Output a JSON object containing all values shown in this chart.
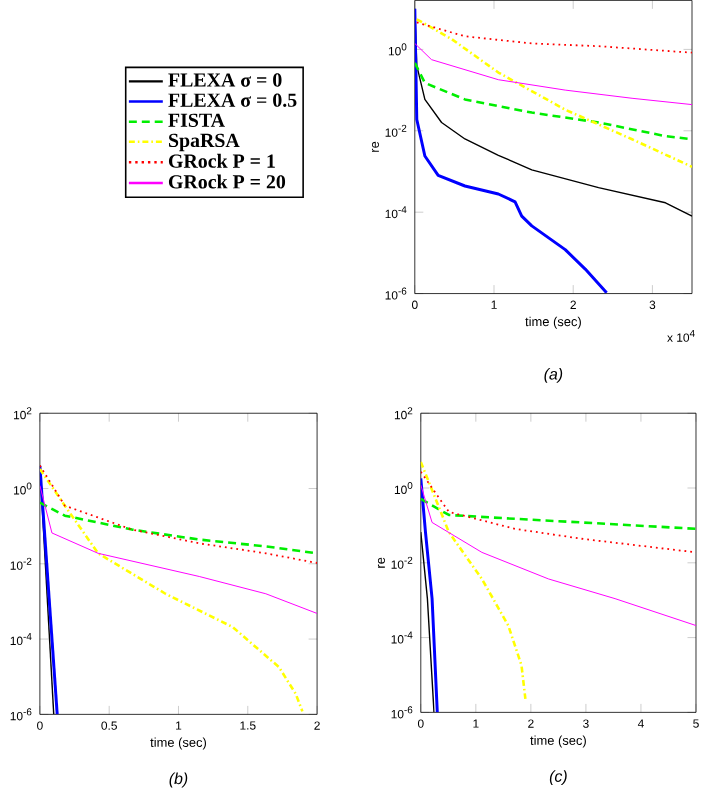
{
  "chart_data": [
    {
      "type": "line",
      "log": "y",
      "xlabel": "time (sec)",
      "ylabel": "re",
      "legend": "left",
      "xlim": [
        0,
        3.5
      ],
      "xticks": [
        0,
        1,
        2,
        3
      ],
      "ylim": [
        1e-06,
        16
      ],
      "yticks": [
        {
          "value": 1e-06,
          "label": "10$^{-6}$"
        },
        {
          "value": 0.0001,
          "label": "10$^{-4}$"
        },
        {
          "value": 0.01,
          "label": "10$^{-2}$"
        },
        {
          "value": 1,
          "label": "10$^{0}$"
        }
      ],
      "annotations": [
        "x 10$^{4}$",
        "(a)"
      ],
      "series": [
        {
          "name": "FLEXA σ = 0",
          "color": "#000000",
          "line_style": "solid",
          "x": [
            0,
            0.025,
            0.127,
            0.338,
            0.633,
            1.055,
            1.477,
            2.32,
            3.165,
            3.5
          ],
          "values": [
            10,
            0.4,
            0.059,
            0.016,
            0.0063,
            0.0025,
            0.0011,
            0.0004,
            0.00017,
            8e-05
          ]
        },
        {
          "name": "FLEXA σ = 0.5",
          "color": "#0000ff",
          "line_style": "solid",
          "x": [
            0,
            0.025,
            0.127,
            0.295,
            0.633,
            1.055,
            1.266,
            1.35,
            1.477,
            1.899,
            2.152,
            2.422
          ],
          "values": [
            10,
            0.019,
            0.0024,
            0.0008,
            0.00044,
            0.00028,
            0.00018,
            8e-05,
            4.6e-05,
            1.2e-05,
            4e-06,
            1.05e-06
          ]
        },
        {
          "name": "FISTA",
          "color": "#00ee00",
          "line_style": "dashed",
          "x": [
            0,
            0.127,
            0.633,
            1.477,
            2.32,
            3.165,
            3.5
          ],
          "values": [
            0.47,
            0.15,
            0.059,
            0.028,
            0.016,
            0.0074,
            0.0062
          ]
        },
        {
          "name": "SpaRSA",
          "color": "#ffff00",
          "line_style": "dashdot",
          "x": [
            0.025,
            0.464,
            1.055,
            1.899,
            2.743,
            3.5
          ],
          "values": [
            5.5,
            1.8,
            0.27,
            0.033,
            0.0062,
            0.0013
          ]
        },
        {
          "name": "GRock P = 1",
          "color": "#ff0000",
          "line_style": "dotted",
          "x": [
            0.025,
            0.633,
            1.477,
            2.32,
            3.5
          ],
          "values": [
            4.6,
            2.1,
            1.4,
            1.2,
            0.83
          ]
        },
        {
          "name": "GRock P = 20",
          "color": "#ff00ff",
          "line_style": "solid",
          "x": [
            0,
            0.211,
            1.055,
            1.899,
            2.743,
            3.5
          ],
          "values": [
            1.4,
            0.56,
            0.18,
            0.1,
            0.063,
            0.044
          ]
        }
      ]
    },
    {
      "type": "line",
      "log": "y",
      "xlabel": "time (sec)",
      "xlim": [
        0,
        2
      ],
      "xticks": [
        0,
        0.5,
        1,
        1.5,
        2
      ],
      "ylim": [
        1e-06,
        100
      ],
      "yticks": [
        {
          "value": 1e-06,
          "label": "10$^{-6}$"
        },
        {
          "value": 0.0001,
          "label": "10$^{-4}$"
        },
        {
          "value": 0.01,
          "label": "10$^{-2}$"
        },
        {
          "value": 1,
          "label": "10$^{0}$"
        },
        {
          "value": 100,
          "label": "10$^{2}$"
        }
      ],
      "annotations": [
        "(b)"
      ],
      "series": [
        {
          "color": "#000000",
          "line_style": "solid",
          "x": [
            0,
            0.1
          ],
          "values": [
            4,
            1e-06
          ]
        },
        {
          "color": "#0000ff",
          "line_style": "solid",
          "x": [
            0,
            0.125
          ],
          "values": [
            4,
            1e-06
          ]
        },
        {
          "color": "#00ee00",
          "line_style": "dashed",
          "x": [
            0,
            0.18,
            0.665,
            1.15,
            1.63,
            2
          ],
          "values": [
            0.42,
            0.19,
            0.081,
            0.044,
            0.029,
            0.019
          ]
        },
        {
          "color": "#ffff00",
          "line_style": "dashdot",
          "x": [
            0,
            0.18,
            0.42,
            0.906,
            1.39,
            1.725,
            1.846,
            1.894
          ],
          "values": [
            3.3,
            0.35,
            0.019,
            0.0016,
            0.00021,
            1.8e-05,
            3.5e-06,
            1.2e-06
          ]
        },
        {
          "color": "#ff0000",
          "line_style": "dotted",
          "x": [
            0,
            0.18,
            0.665,
            1.15,
            1.63,
            2
          ],
          "values": [
            4.1,
            0.35,
            0.081,
            0.035,
            0.019,
            0.0105
          ]
        },
        {
          "color": "#ff00ff",
          "line_style": "solid",
          "x": [
            0,
            0.087,
            0.42,
            1.15,
            1.63,
            2
          ],
          "values": [
            1.2,
            0.066,
            0.019,
            0.0046,
            0.0016,
            0.00048
          ]
        }
      ]
    },
    {
      "type": "line",
      "log": "y",
      "xlabel": "time (sec)",
      "ylabel": "re",
      "xlim": [
        0,
        5
      ],
      "xticks": [
        0,
        1,
        2,
        3,
        4,
        5
      ],
      "ylim": [
        1e-06,
        100
      ],
      "yticks": [
        {
          "value": 1e-06,
          "label": "10$^{-6}$"
        },
        {
          "value": 0.0001,
          "label": "10$^{-4}$"
        },
        {
          "value": 0.01,
          "label": "10$^{-2}$"
        },
        {
          "value": 1,
          "label": "10$^{0}$"
        },
        {
          "value": 100,
          "label": "10$^{2}$"
        }
      ],
      "annotations": [
        "(c)"
      ],
      "series": [
        {
          "color": "#000000",
          "line_style": "solid",
          "x": [
            0,
            0.12,
            0.24
          ],
          "values": [
            0.066,
            0.0011,
            1e-06
          ]
        },
        {
          "color": "#0000ff",
          "line_style": "solid",
          "x": [
            0,
            0.085,
            0.205,
            0.3
          ],
          "values": [
            1.8,
            0.066,
            0.0011,
            1e-06
          ]
        },
        {
          "color": "#00ee00",
          "line_style": "dashed",
          "x": [
            0,
            0.51,
            1.71,
            2.92,
            5
          ],
          "values": [
            0.51,
            0.19,
            0.15,
            0.12,
            0.081
          ]
        },
        {
          "color": "#ffff00",
          "line_style": "dashdot",
          "x": [
            0,
            0.51,
            1.11,
            1.59,
            1.83,
            1.9
          ],
          "values": [
            5,
            0.066,
            0.0037,
            0.00021,
            1.8e-05,
            2.3e-06
          ]
        },
        {
          "color": "#ff0000",
          "line_style": "dotted",
          "x": [
            0,
            0.51,
            1.71,
            2.92,
            5
          ],
          "values": [
            2.7,
            0.23,
            0.081,
            0.044,
            0.019
          ]
        },
        {
          "color": "#ff00ff",
          "line_style": "solid",
          "x": [
            0,
            0.205,
            1.11,
            2.32,
            3.53,
            5
          ],
          "values": [
            1.2,
            0.12,
            0.019,
            0.0037,
            0.0011,
            0.00021
          ]
        }
      ]
    }
  ]
}
